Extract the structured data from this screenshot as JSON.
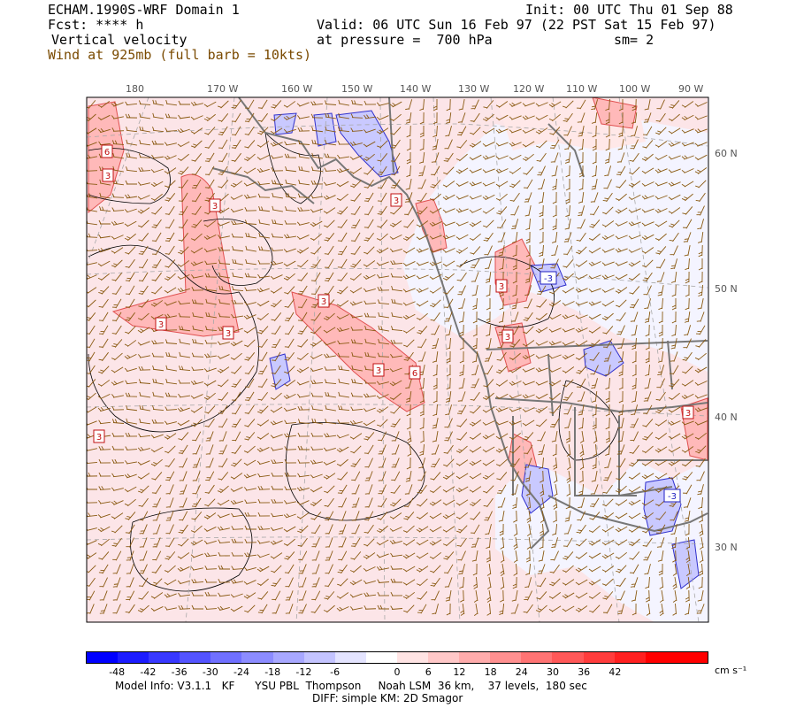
{
  "header": {
    "model_title": "ECHAM.1990S-WRF Domain 1",
    "forecast": "Fcst: **** h",
    "field": "Vertical velocity",
    "wind_label": "Wind at 925mb (full barb = 10kts)",
    "init": "Init: 00 UTC Thu 01 Sep 88",
    "valid": "Valid: 06 UTC Sun 16 Feb 97 (22 PST Sat 15 Feb 97)",
    "pressure": "at pressure =  700 hPa",
    "smooth": "sm= 2"
  },
  "map": {
    "lon_labels": [
      "180",
      "170 W",
      "160 W",
      "150 W",
      "140 W",
      "130 W",
      "120 W",
      "110 W",
      "100 W",
      "90 W"
    ],
    "lat_labels": [
      "60 N",
      "50 N",
      "40 N",
      "30 N"
    ],
    "contour_labels": [
      "6",
      "3",
      "3",
      "3",
      "3",
      "3",
      "6",
      "3",
      "3",
      "3",
      "3",
      "-3",
      "3",
      "-3",
      "3"
    ],
    "colors": {
      "land_outline": "#777777",
      "barb": "#8a5a12",
      "contour": "#000000",
      "grid": "#a8a8a8"
    }
  },
  "colorbar": {
    "labels": [
      "-48",
      "-42",
      "-36",
      "-30",
      "-24",
      "-18",
      "-12",
      "-6",
      "0",
      "6",
      "12",
      "18",
      "24",
      "30",
      "36",
      "42"
    ],
    "unit": "cm s⁻¹",
    "colors": [
      "#0000ff",
      "#1c1cff",
      "#3838ff",
      "#5454ff",
      "#7070ff",
      "#8c8cff",
      "#a8a8ff",
      "#c4c4ff",
      "#e4e4ff",
      "#ffffff",
      "#ffe4e4",
      "#ffc8c8",
      "#ffacac",
      "#ff9090",
      "#ff7474",
      "#ff5858",
      "#ff3c3c",
      "#ff2020",
      "#ff0000",
      "#ff0000"
    ]
  },
  "footer": {
    "line1": "Model Info: V3.1.1   KF      YSU PBL  Thompson     Noah LSM  36 km,    37 levels,  180 sec",
    "line2": "DIFF: simple KM: 2D Smagor"
  }
}
